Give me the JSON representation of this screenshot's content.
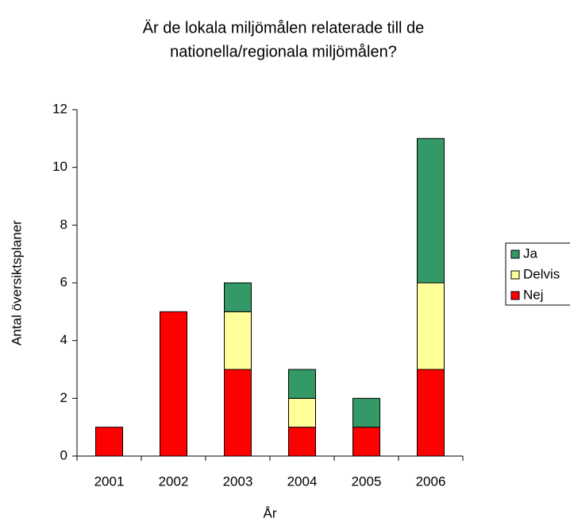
{
  "chart_data": {
    "type": "stacked_bar",
    "title": [
      "Är de lokala miljömålen relaterade till de",
      "nationella/regionala miljömålen?"
    ],
    "x_label": "År",
    "y_label": "Antal översiktsplaner",
    "categories": [
      "2001",
      "2002",
      "2003",
      "2004",
      "2005",
      "2006"
    ],
    "series": [
      {
        "name": "Nej",
        "color": "#ff0000",
        "values": [
          1,
          5,
          3,
          1,
          1,
          3
        ]
      },
      {
        "name": "Delvis",
        "color": "#ffff99",
        "values": [
          0,
          0,
          2,
          1,
          0,
          3
        ]
      },
      {
        "name": "Ja",
        "color": "#339966",
        "values": [
          0,
          0,
          1,
          1,
          1,
          5
        ]
      }
    ],
    "ylim": [
      0,
      12
    ],
    "yticks": [
      0,
      2,
      4,
      6,
      8,
      10,
      12
    ],
    "legend": "right"
  }
}
